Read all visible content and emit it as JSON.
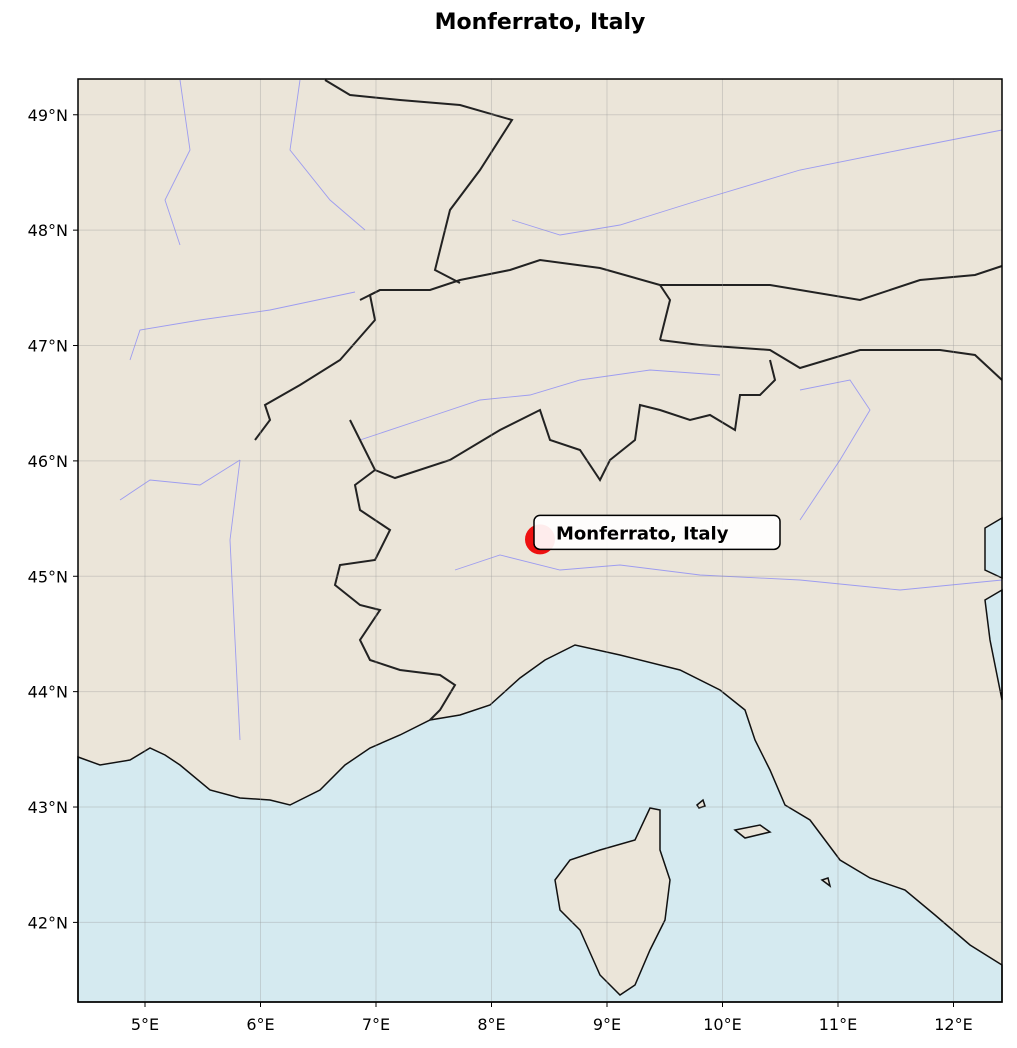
{
  "title": "Monferrato, Italy",
  "map": {
    "extent": {
      "lon": [
        4.42,
        12.42
      ],
      "lat": [
        41.31,
        49.31
      ]
    },
    "colors": {
      "land": "#ebe5d9",
      "ocean": "#d5eaf0",
      "rivers": "#9d9cf0",
      "borders": "#222222",
      "marker": "#ee1111"
    },
    "grid": true,
    "lon_ticks": [
      {
        "value": 5,
        "label": "5°E"
      },
      {
        "value": 6,
        "label": "6°E"
      },
      {
        "value": 7,
        "label": "7°E"
      },
      {
        "value": 8,
        "label": "8°E"
      },
      {
        "value": 9,
        "label": "9°E"
      },
      {
        "value": 10,
        "label": "10°E"
      },
      {
        "value": 11,
        "label": "11°E"
      },
      {
        "value": 12,
        "label": "12°E"
      }
    ],
    "lat_ticks": [
      {
        "value": 42,
        "label": "42°N"
      },
      {
        "value": 43,
        "label": "43°N"
      },
      {
        "value": 44,
        "label": "44°N"
      },
      {
        "value": 45,
        "label": "45°N"
      },
      {
        "value": 46,
        "label": "46°N"
      },
      {
        "value": 47,
        "label": "47°N"
      },
      {
        "value": 48,
        "label": "48°N"
      },
      {
        "value": 49,
        "label": "49°N"
      }
    ],
    "marker": {
      "lon": 8.42,
      "lat": 45.32,
      "label": "Monferrato, Italy"
    }
  }
}
